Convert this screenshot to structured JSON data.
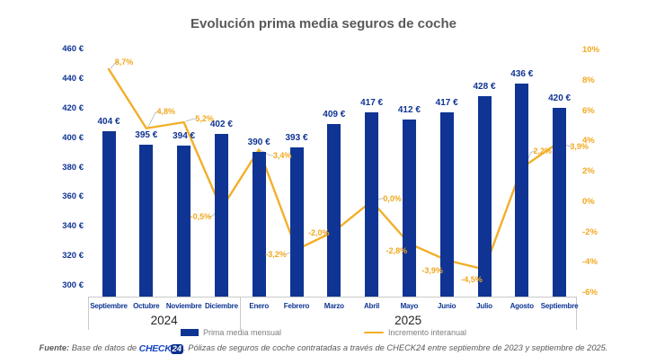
{
  "title": "Evolución prima media seguros de coche",
  "chart_data": {
    "type": "bar+line",
    "categories": [
      "Septiembre",
      "Octubre",
      "Noviembre",
      "Diciembre",
      "Enero",
      "Febrero",
      "Marzo",
      "Abril",
      "Mayo",
      "Junio",
      "Julio",
      "Agosto",
      "Septiembre"
    ],
    "year_groups": [
      {
        "label": "2024",
        "span": 4
      },
      {
        "label": "2025",
        "span": 9
      }
    ],
    "series": [
      {
        "name": "Prima media mensual",
        "type": "bar",
        "unit": "€",
        "values": [
          404,
          395,
          394,
          402,
          390,
          393,
          409,
          417,
          412,
          417,
          428,
          436,
          420
        ],
        "labels": [
          "404 €",
          "395 €",
          "394 €",
          "402 €",
          "390 €",
          "393 €",
          "409 €",
          "417 €",
          "412 €",
          "417 €",
          "428 €",
          "436 €",
          "420 €"
        ]
      },
      {
        "name": "Incremento interanual",
        "type": "line",
        "unit": "%",
        "values": [
          8.7,
          4.8,
          5.2,
          -0.5,
          3.4,
          -3.2,
          -2.0,
          0.0,
          -2.8,
          -3.9,
          -4.5,
          2.2,
          3.9
        ],
        "labels": [
          "8,7%",
          "4,8%",
          "5,2%",
          "-0,5%",
          "3,4%",
          "-3,2%",
          "-2,0%",
          "0,0%",
          "-2,8%",
          "-3,9%",
          "-4,5%",
          "2,2%",
          "3,9%"
        ]
      }
    ],
    "left_axis": {
      "min": 300,
      "max": 460,
      "values": [
        460,
        440,
        420,
        400,
        380,
        360,
        340,
        320,
        300
      ],
      "ticks": [
        "460 €",
        "440 €",
        "420 €",
        "400 €",
        "380 €",
        "360 €",
        "340 €",
        "320 €",
        "300 €"
      ]
    },
    "right_axis": {
      "min": -6,
      "max": 10,
      "values": [
        10,
        8,
        6,
        4,
        2,
        0,
        -2,
        -4,
        -6
      ],
      "ticks": [
        "10%",
        "8%",
        "6%",
        "4%",
        "2%",
        "0%",
        "-2%",
        "-4%",
        "-6%"
      ]
    },
    "grid": false,
    "legend_position": "bottom",
    "colors": {
      "bar": "#0f3494",
      "line": "#f2af29",
      "bar_label": "#0f3494",
      "line_label": "#f2a81d",
      "title": "#595959",
      "axis_lines": "#c9c9c9"
    }
  },
  "legend": {
    "items": [
      {
        "label": "Prima media mensual"
      },
      {
        "label": "Incremento interanual"
      }
    ]
  },
  "footer": {
    "prefix": "Fuente:",
    "before_logo": " Base de datos de ",
    "logo_text": "CHECK",
    "logo_badge": "24",
    "after_logo": ". Pólizas de seguros de coche contratadas a través de CHECK24 entre septiembre de 2023 y septiembre de 2025."
  }
}
